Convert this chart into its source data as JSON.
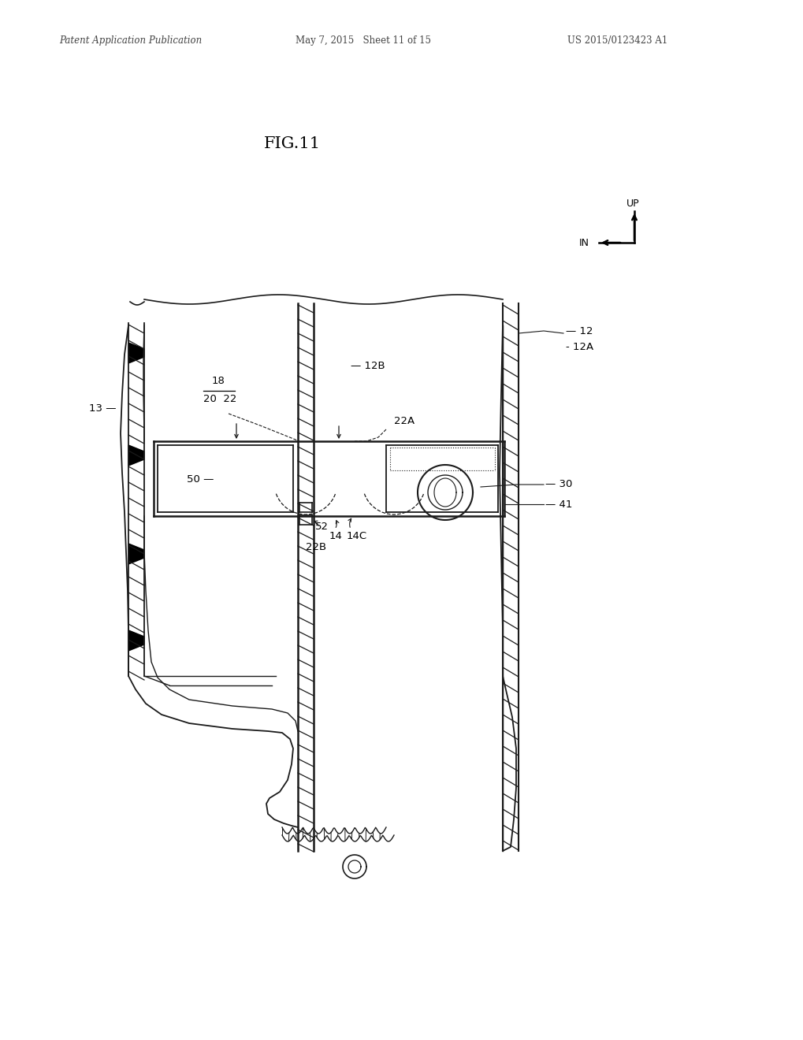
{
  "bg_color": "#ffffff",
  "header_left": "Patent Application Publication",
  "header_mid": "May 7, 2015   Sheet 11 of 15",
  "header_right": "US 2015/0123423 A1",
  "fig_title": "FIG.11",
  "line_color": "#1a1a1a",
  "text_color": "#1a1a1a"
}
